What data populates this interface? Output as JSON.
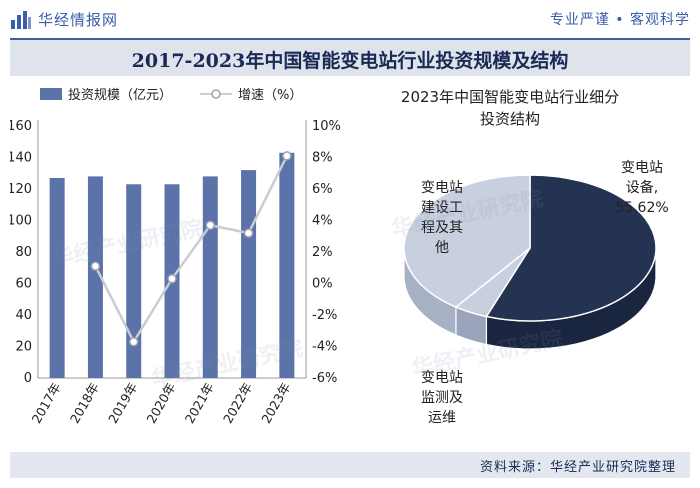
{
  "header": {
    "brand": "华经情报网",
    "slogan": "专业严谨 • 客观科学",
    "title": "2017-2023年中国智能变电站行业投资规模及结构"
  },
  "footer": {
    "source": "资料来源：华经产业研究院整理",
    "watermark_name": "华经产业研究院",
    "watermark_url": "www.huaon.com"
  },
  "colors": {
    "bar": "#5b73a8",
    "line": "#c9ccd3",
    "marker_fill": "#ffffff",
    "pie_dark": "#253352",
    "pie_light": "#c8d0df",
    "pie_mid": "#b4bdd0",
    "brand": "#3a5ea8"
  },
  "chart_data": [
    {
      "type": "bar",
      "combo": "bar+line",
      "categories": [
        "2017年",
        "2018年",
        "2019年",
        "2020年",
        "2021年",
        "2022年",
        "2023年"
      ],
      "series": [
        {
          "name": "投资规模（亿元）",
          "type": "bar",
          "axis": "left",
          "values": [
            127,
            128,
            123,
            123,
            128,
            132,
            143
          ]
        },
        {
          "name": "增速（%）",
          "type": "line",
          "axis": "right",
          "values": [
            null,
            1.1,
            -3.7,
            0.3,
            3.7,
            3.2,
            8.1
          ]
        }
      ],
      "left_axis": {
        "ylim": [
          0,
          160
        ],
        "ticks": [
          "0",
          "20",
          "40",
          "60",
          "80",
          "100",
          "120",
          "140",
          "160"
        ]
      },
      "right_axis": {
        "ylim": [
          -6,
          10
        ],
        "ticks": [
          "-6%",
          "-4%",
          "-2%",
          "0%",
          "2%",
          "4%",
          "6%",
          "8%",
          "10%"
        ]
      },
      "legend": [
        "投资规模（亿元）",
        "增速（%）"
      ],
      "legend_position": "top-left"
    },
    {
      "type": "pie",
      "title": "2023年中国智能变电站行业细分投资结构",
      "title_lines": [
        "2023年中国智能变电站行业细分",
        "投资结构"
      ],
      "slices": [
        {
          "label_lines": [
            "变电站",
            "设备,",
            "55.62%"
          ],
          "value": 55.62
        },
        {
          "label_lines": [
            "变电站",
            "监测及",
            "运维"
          ],
          "value": 4.38
        },
        {
          "label_lines": [
            "变电站",
            "建设工",
            "程及其",
            "他"
          ],
          "value": 40.0
        }
      ]
    }
  ]
}
